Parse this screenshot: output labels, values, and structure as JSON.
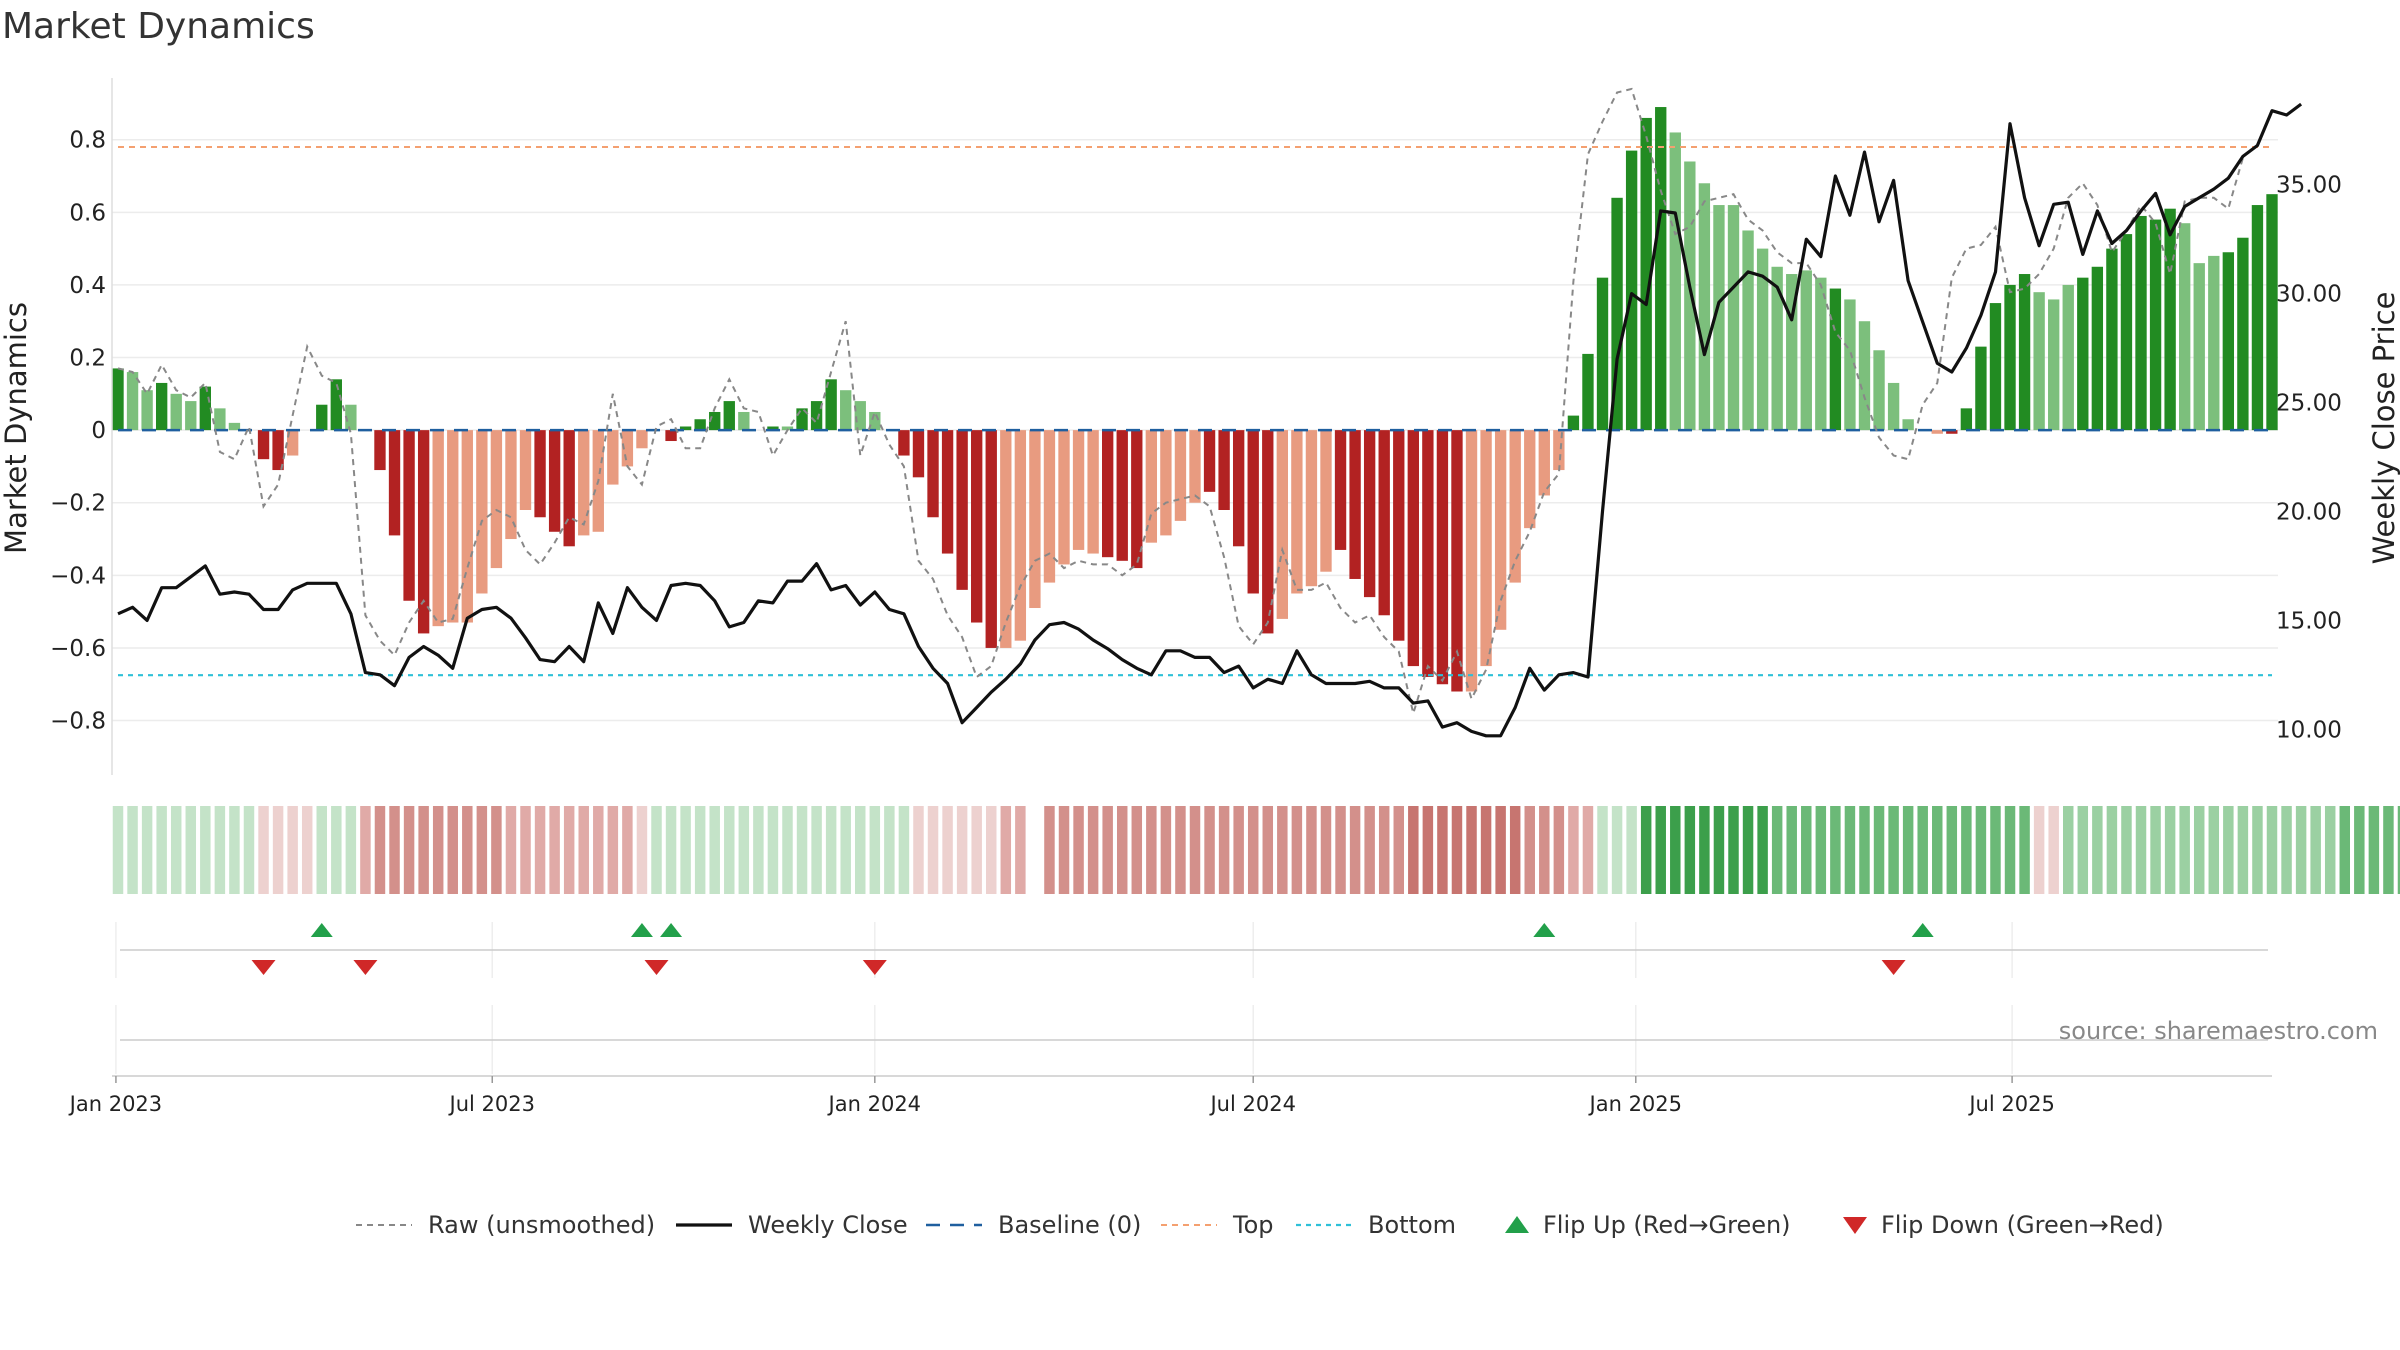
{
  "title": "Market Dynamics",
  "source": "source: sharemaestro.com",
  "legend": [
    {
      "key": "raw",
      "label": "Raw (unsmoothed)"
    },
    {
      "key": "close",
      "label": "Weekly Close"
    },
    {
      "key": "baseline",
      "label": "Baseline (0)"
    },
    {
      "key": "top",
      "label": "Top"
    },
    {
      "key": "bottom",
      "label": "Bottom"
    },
    {
      "key": "flip_up",
      "label": "Flip Up (Red→Green)"
    },
    {
      "key": "flip_down",
      "label": "Flip Down (Green→Red)"
    }
  ],
  "colors": {
    "strong_up": "#228b22",
    "weak_up": "#7cbf7c",
    "strong_down": "#b22222",
    "weak_down": "#e89b80",
    "close": "#111111",
    "raw": "#888888",
    "baseline": "#1f5f9f",
    "top": "#f4a070",
    "bottom": "#2ec0d8",
    "flip_up": "#22a04a",
    "flip_down": "#d02828"
  },
  "chart_data": {
    "type": "bar",
    "x_type": "date",
    "x_start": "2023-01-02",
    "x_step_days": 7,
    "x_ticks": [
      "Jan 2023",
      "Jul 2023",
      "Jan 2024",
      "Jul 2024",
      "Jan 2025",
      "Jul 2025"
    ],
    "x_tick_dates": [
      "2023-01-01",
      "2023-07-01",
      "2024-01-01",
      "2024-07-01",
      "2025-01-01",
      "2025-07-01"
    ],
    "y_left": {
      "label": "Market Dynamics",
      "range": [
        -0.95,
        0.97
      ],
      "ticks": [
        0.8,
        0.6,
        0.4,
        0.2,
        0,
        -0.2,
        -0.4,
        -0.6,
        -0.8
      ],
      "tick_labels": [
        "0.8",
        "0.6",
        "0.4",
        "0.2",
        "0",
        "−0.2",
        "−0.4",
        "−0.6",
        "−0.8"
      ]
    },
    "y_right": {
      "label": "Weekly Close Price",
      "range": [
        7.9,
        39.9
      ],
      "ticks": [
        35,
        30,
        25,
        20,
        15,
        10
      ],
      "tick_labels": [
        "35.00",
        "30.00",
        "25.00",
        "20.00",
        "15.00",
        "10.00"
      ]
    },
    "top_level": 0.78,
    "bottom_level": -0.675,
    "series": [
      {
        "name": "Market Dynamics",
        "values": [
          0.17,
          0.16,
          0.11,
          0.13,
          0.1,
          0.08,
          0.12,
          0.06,
          0.02,
          0,
          -0.08,
          -0.11,
          -0.07,
          0,
          0.07,
          0.14,
          0.07,
          0,
          -0.11,
          -0.29,
          -0.47,
          -0.56,
          -0.54,
          -0.53,
          -0.53,
          -0.45,
          -0.38,
          -0.3,
          -0.22,
          -0.24,
          -0.28,
          -0.32,
          -0.29,
          -0.28,
          -0.15,
          -0.1,
          -0.05,
          0,
          -0.03,
          0.01,
          0.03,
          0.05,
          0.08,
          0.05,
          0,
          0.01,
          0.01,
          0.06,
          0.08,
          0.14,
          0.11,
          0.08,
          0.05,
          0,
          -0.07,
          -0.13,
          -0.24,
          -0.34,
          -0.44,
          -0.53,
          -0.6,
          -0.6,
          -0.58,
          -0.49,
          -0.42,
          -0.37,
          -0.33,
          -0.34,
          -0.35,
          -0.36,
          -0.38,
          -0.31,
          -0.29,
          -0.25,
          -0.2,
          -0.17,
          -0.22,
          -0.32,
          -0.45,
          -0.56,
          -0.52,
          -0.45,
          -0.43,
          -0.39,
          -0.33,
          -0.41,
          -0.46,
          -0.51,
          -0.58,
          -0.65,
          -0.68,
          -0.7,
          -0.72,
          -0.72,
          -0.65,
          -0.55,
          -0.42,
          -0.27,
          -0.18,
          -0.11,
          0.04,
          0.21,
          0.42,
          0.64,
          0.77,
          0.86,
          0.89,
          0.82,
          0.74,
          0.68,
          0.62,
          0.62,
          0.55,
          0.5,
          0.45,
          0.43,
          0.44,
          0.42,
          0.39,
          0.36,
          0.3,
          0.22,
          0.13,
          0.03,
          0,
          -0.01,
          -0.01,
          0.06,
          0.23,
          0.35,
          0.4,
          0.43,
          0.38,
          0.36,
          0.4,
          0.42,
          0.45,
          0.5,
          0.54,
          0.59,
          0.58,
          0.61,
          0.57,
          0.46,
          0.48,
          0.49,
          0.53,
          0.62,
          0.65
        ],
        "strength": [
          "s",
          "w",
          "w",
          "s",
          "w",
          "w",
          "s",
          "w",
          "w",
          "w",
          "s",
          "s",
          "w",
          "w",
          "s",
          "s",
          "w",
          "w",
          "s",
          "s",
          "s",
          "s",
          "w",
          "w",
          "w",
          "w",
          "w",
          "w",
          "w",
          "s",
          "s",
          "s",
          "w",
          "w",
          "w",
          "w",
          "w",
          "w",
          "s",
          "s",
          "s",
          "s",
          "s",
          "w",
          "w",
          "s",
          "w",
          "s",
          "s",
          "s",
          "w",
          "w",
          "w",
          "w",
          "s",
          "s",
          "s",
          "s",
          "s",
          "s",
          "s",
          "w",
          "w",
          "w",
          "w",
          "w",
          "w",
          "w",
          "s",
          "s",
          "s",
          "w",
          "w",
          "w",
          "w",
          "s",
          "s",
          "s",
          "s",
          "s",
          "w",
          "w",
          "w",
          "w",
          "s",
          "s",
          "s",
          "s",
          "s",
          "s",
          "s",
          "s",
          "s",
          "w",
          "w",
          "w",
          "w",
          "w",
          "w",
          "w",
          "s",
          "s",
          "s",
          "s",
          "s",
          "s",
          "s",
          "w",
          "w",
          "w",
          "w",
          "w",
          "w",
          "w",
          "w",
          "w",
          "w",
          "w",
          "s",
          "w",
          "w",
          "w",
          "w",
          "w",
          "w",
          "w",
          "s",
          "s",
          "s",
          "s",
          "s",
          "s",
          "w",
          "w",
          "w",
          "s",
          "s",
          "s",
          "s",
          "s",
          "s",
          "s",
          "w",
          "w",
          "w",
          "s",
          "s",
          "s",
          "s",
          "s",
          "s"
        ]
      },
      {
        "name": "Raw (unsmoothed)",
        "values": [
          0.17,
          0.16,
          0.1,
          0.18,
          0.11,
          0.09,
          0.13,
          -0.06,
          -0.08,
          0.01,
          -0.21,
          -0.15,
          0.04,
          0.23,
          0.15,
          0.13,
          -0.01,
          -0.51,
          -0.58,
          -0.62,
          -0.53,
          -0.47,
          -0.53,
          -0.52,
          -0.38,
          -0.25,
          -0.22,
          -0.24,
          -0.33,
          -0.37,
          -0.31,
          -0.24,
          -0.26,
          -0.14,
          0.1,
          -0.1,
          -0.15,
          0.01,
          0.03,
          -0.05,
          -0.05,
          0.06,
          0.14,
          0.06,
          0.05,
          -0.07,
          0,
          0.06,
          0.02,
          0.16,
          0.3,
          -0.07,
          0.05,
          -0.04,
          -0.1,
          -0.36,
          -0.41,
          -0.51,
          -0.57,
          -0.68,
          -0.65,
          -0.53,
          -0.43,
          -0.36,
          -0.34,
          -0.38,
          -0.36,
          -0.37,
          -0.37,
          -0.4,
          -0.37,
          -0.23,
          -0.2,
          -0.19,
          -0.18,
          -0.21,
          -0.35,
          -0.54,
          -0.59,
          -0.53,
          -0.33,
          -0.44,
          -0.44,
          -0.42,
          -0.49,
          -0.53,
          -0.51,
          -0.57,
          -0.61,
          -0.78,
          -0.65,
          -0.69,
          -0.61,
          -0.74,
          -0.66,
          -0.47,
          -0.36,
          -0.28,
          -0.17,
          -0.12,
          0.41,
          0.76,
          0.85,
          0.93,
          0.94,
          0.81,
          0.66,
          0.54,
          0.56,
          0.63,
          0.64,
          0.65,
          0.58,
          0.55,
          0.49,
          0.46,
          0.46,
          0.4,
          0.27,
          0.22,
          0.09,
          -0.02,
          -0.07,
          -0.08,
          0.07,
          0.13,
          0.42,
          0.5,
          0.51,
          0.56,
          0.38,
          0.39,
          0.43,
          0.5,
          0.64,
          0.68,
          0.62,
          0.49,
          0.55,
          0.62,
          0.57,
          0.43,
          0.63,
          0.64,
          0.64,
          0.61,
          0.75
        ],
        "style": "dashed"
      },
      {
        "name": "Weekly Close",
        "axis": "right",
        "values": [
          15.3,
          15.6,
          15,
          16.5,
          16.5,
          17,
          17.5,
          16.2,
          16.3,
          16.2,
          15.5,
          15.5,
          16.4,
          16.7,
          16.7,
          16.7,
          15.3,
          12.6,
          12.5,
          12,
          13.3,
          13.8,
          13.4,
          12.8,
          15.1,
          15.5,
          15.6,
          15.1,
          14.2,
          13.2,
          13.1,
          13.8,
          13.1,
          15.8,
          14.4,
          16.5,
          15.6,
          15,
          16.6,
          16.7,
          16.6,
          15.9,
          14.7,
          14.9,
          15.9,
          15.8,
          16.8,
          16.8,
          17.6,
          16.4,
          16.6,
          15.7,
          16.3,
          15.5,
          15.3,
          13.8,
          12.8,
          12.1,
          10.3,
          11,
          11.7,
          12.3,
          13,
          14.1,
          14.8,
          14.9,
          14.6,
          14.1,
          13.7,
          13.2,
          12.8,
          12.5,
          13.6,
          13.6,
          13.3,
          13.3,
          12.6,
          12.9,
          11.9,
          12.3,
          12.1,
          13.6,
          12.5,
          12.1,
          12.1,
          12.1,
          12.2,
          11.9,
          11.9,
          11.2,
          11.3,
          10.1,
          10.3,
          9.9,
          9.7,
          9.7,
          11,
          12.8,
          11.8,
          12.5,
          12.6,
          12.4,
          20,
          27,
          30,
          29.5,
          33.8,
          33.7,
          30.3,
          27.2,
          29.6,
          30.3,
          31,
          30.8,
          30.3,
          28.8,
          32.5,
          31.7,
          35.4,
          33.6,
          36.5,
          33.3,
          35.2,
          30.6,
          28.7,
          26.8,
          26.4,
          27.5,
          29,
          31,
          37.8,
          34.4,
          32.2,
          34.1,
          34.2,
          31.8,
          33.8,
          32.3,
          32.9,
          33.8,
          34.6,
          32.7,
          34,
          34.4,
          34.8,
          35.3,
          36.3,
          36.8,
          38.4,
          38.2,
          38.7
        ]
      }
    ],
    "regime_strip": {
      "values": [
        1,
        1,
        1,
        1,
        1,
        1,
        1,
        1,
        1,
        1,
        -1,
        -1,
        -1,
        -1,
        1,
        1,
        1,
        -2,
        -3,
        -3,
        -3,
        -3,
        -3,
        -3,
        -3,
        -3,
        -3,
        -2,
        -2,
        -2,
        -2,
        -2,
        -2,
        -2,
        -2,
        -2,
        -1,
        1,
        1,
        1,
        1,
        1,
        1,
        1,
        1,
        1,
        1,
        1,
        1,
        1,
        1,
        1,
        1,
        1,
        1,
        -1,
        -1,
        -1,
        -1,
        -1,
        -1,
        -2,
        -2,
        null,
        -3,
        -3,
        -3,
        -3,
        -3,
        -3,
        -3,
        -3,
        -3,
        -3,
        -3,
        -3,
        -3,
        -3,
        -3,
        -3,
        -3,
        -3,
        -3,
        -3,
        -3,
        -3,
        -3,
        -3,
        -3,
        -4,
        -4,
        -4,
        -4,
        -4,
        -4,
        -4,
        -4,
        -3,
        -3,
        -3,
        -2,
        -2,
        1,
        1,
        1,
        4,
        4,
        4,
        4,
        4,
        4,
        4,
        4,
        4,
        3,
        3,
        3,
        3,
        3,
        3,
        3,
        3,
        3,
        3,
        3,
        3,
        3,
        3,
        3,
        3,
        3,
        3,
        -1,
        -1,
        2,
        2,
        2,
        2,
        2,
        2,
        2,
        2,
        2,
        2,
        2,
        2,
        2,
        2,
        2,
        2,
        2,
        2,
        2,
        3,
        3,
        3,
        3,
        3,
        3
      ]
    },
    "flip_up_x": [
      14,
      36,
      38,
      98,
      124
    ],
    "flip_down_x": [
      10,
      17,
      37,
      52,
      122
    ]
  }
}
